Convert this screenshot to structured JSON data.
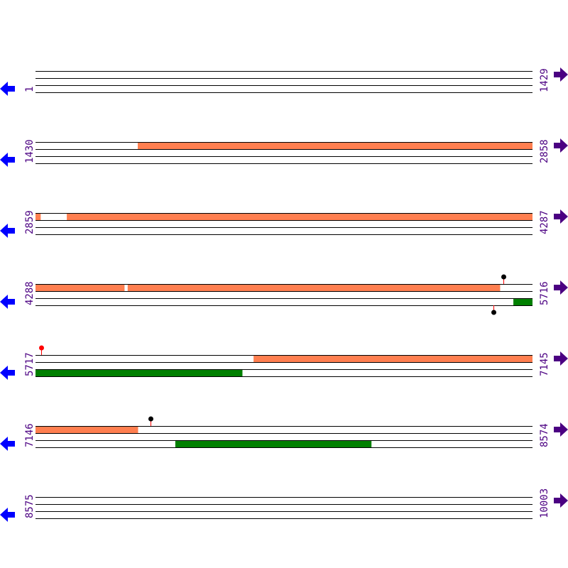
{
  "colors": {
    "line": "#000000",
    "orf_forward": "#ff7f50",
    "orf_reverse": "#008000",
    "label": "#4b0082",
    "arrow_left": "#0000ff",
    "arrow_right": "#4b0082",
    "marker_stem": "#ff0000",
    "marker_black": "#000000",
    "marker_red": "#ff0000"
  },
  "bases_per_row": 1429,
  "rows": [
    {
      "start": "1",
      "end": "1429",
      "forward": [],
      "reverse": [],
      "markers": []
    },
    {
      "start": "1430",
      "end": "2858",
      "forward": [
        [
          1724,
          2858
        ]
      ],
      "reverse": [],
      "markers": []
    },
    {
      "start": "2859",
      "end": "4287",
      "forward": [
        [
          2859,
          2873
        ],
        [
          2949,
          4287
        ]
      ],
      "reverse": [],
      "markers": []
    },
    {
      "start": "4288",
      "end": "5716",
      "forward": [
        [
          4288,
          4543
        ],
        [
          4553,
          5623
        ]
      ],
      "reverse": [
        [
          5662,
          5716
        ]
      ],
      "markers": [
        {
          "pos": 5633,
          "side": "top",
          "color": "black"
        },
        {
          "pos": 5605,
          "side": "bottom",
          "color": "black"
        }
      ]
    },
    {
      "start": "5717",
      "end": "7145",
      "forward": [
        [
          6344,
          7145
        ]
      ],
      "reverse": [
        [
          5717,
          6311
        ]
      ],
      "markers": [
        {
          "pos": 5733,
          "side": "top",
          "color": "red"
        }
      ]
    },
    {
      "start": "7146",
      "end": "8574",
      "forward": [
        [
          7146,
          7440
        ]
      ],
      "reverse": [
        [
          7548,
          8111
        ]
      ],
      "markers": [
        {
          "pos": 7477,
          "side": "top",
          "color": "black"
        }
      ]
    },
    {
      "start": "8575",
      "end": "10003",
      "forward": [],
      "reverse": [],
      "markers": []
    }
  ],
  "icons": {
    "left": "arrow-left-icon",
    "right": "arrow-right-icon"
  }
}
